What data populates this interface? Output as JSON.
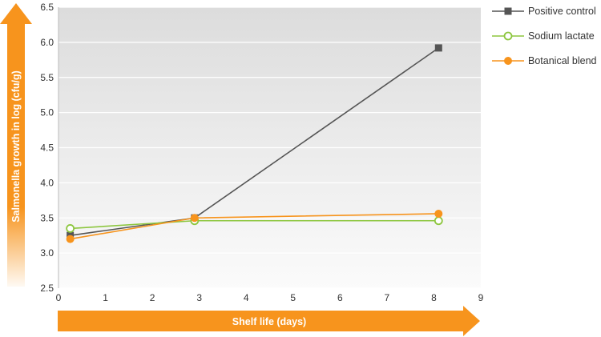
{
  "chart_data": {
    "type": "line",
    "xlabel": "Shelf life (days)",
    "ylabel": "Salmonella growth in log (cfu/g)",
    "xlim": [
      0,
      9
    ],
    "ylim": [
      2.5,
      6.5
    ],
    "x_ticks": [
      "0",
      "1",
      "2",
      "3",
      "4",
      "5",
      "6",
      "7",
      "8",
      "9"
    ],
    "y_ticks": [
      "2.5",
      "3.0",
      "3.5",
      "4.0",
      "4.5",
      "5.0",
      "5.5",
      "6.0",
      "6.5"
    ],
    "grid": true,
    "legend_position": "right",
    "series": [
      {
        "name": "Positive control",
        "color": "#555555",
        "marker": "square-filled",
        "x": [
          0.25,
          2.9,
          8.1
        ],
        "y": [
          3.25,
          3.5,
          5.92
        ]
      },
      {
        "name": "Sodium lactate",
        "color": "#8dc63f",
        "marker": "circle-open",
        "x": [
          0.25,
          2.9,
          8.1
        ],
        "y": [
          3.35,
          3.46,
          3.46
        ]
      },
      {
        "name": "Botanical blend",
        "color": "#f7941d",
        "marker": "circle-filled",
        "x": [
          0.25,
          2.9,
          8.1
        ],
        "y": [
          3.2,
          3.5,
          3.56
        ]
      }
    ]
  }
}
